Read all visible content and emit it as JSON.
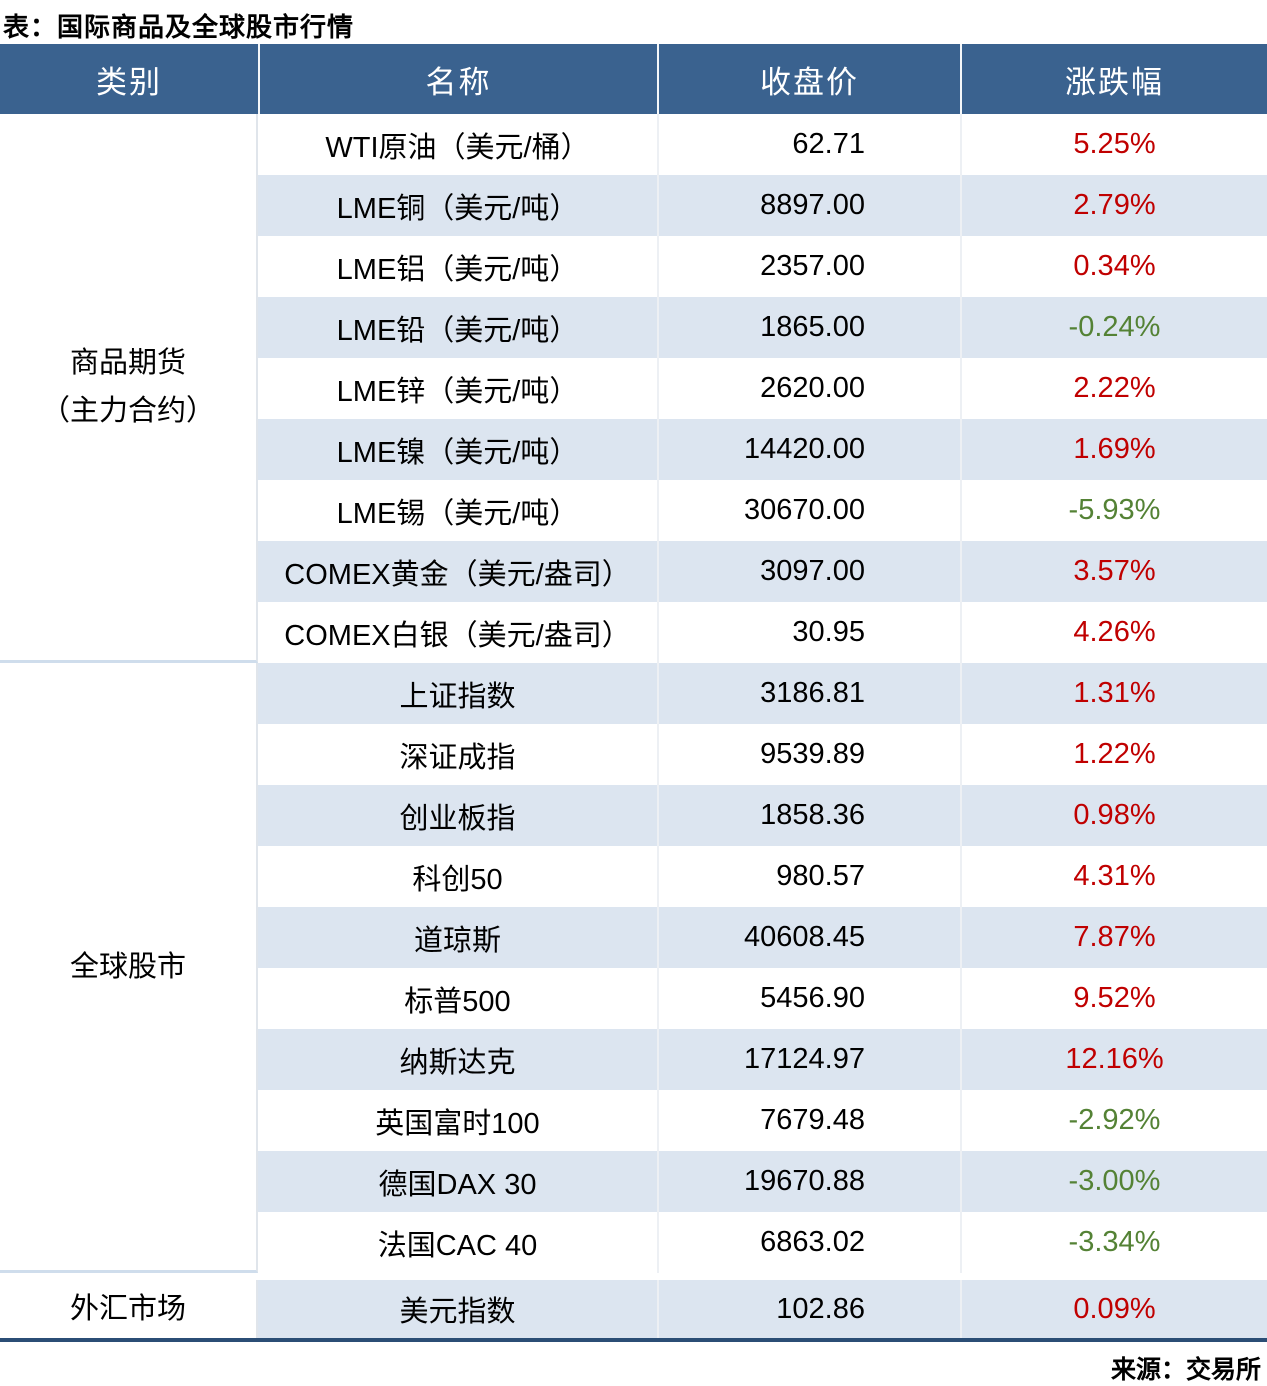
{
  "title": "表：国际商品及全球股市行情",
  "source": "来源：交易所",
  "colors": {
    "header_bg": "#3A628F",
    "row_alt": "#DCE5F0",
    "up_red": "#C00000",
    "down_green": "#548235",
    "bottom_rule": "#2B4E75"
  },
  "chart_data": {
    "type": "table",
    "title": "表：国际商品及全球股市行情",
    "columns": [
      "类别",
      "名称",
      "收盘价",
      "涨跌幅"
    ],
    "source": "来源：交易所",
    "legend_note": "red = positive change, green = negative change",
    "sections": [
      {
        "category": "商品期货（主力合约）",
        "category_lines": [
          "商品期货",
          "（主力合约）"
        ],
        "rows": [
          {
            "name": "WTI原油（美元/桶）",
            "close": "62.71",
            "change": "5.25%"
          },
          {
            "name": "LME铜（美元/吨）",
            "close": "8897.00",
            "change": "2.79%"
          },
          {
            "name": "LME铝（美元/吨）",
            "close": "2357.00",
            "change": "0.34%"
          },
          {
            "name": "LME铅（美元/吨）",
            "close": "1865.00",
            "change": "-0.24%"
          },
          {
            "name": "LME锌（美元/吨）",
            "close": "2620.00",
            "change": "2.22%"
          },
          {
            "name": "LME镍（美元/吨）",
            "close": "14420.00",
            "change": "1.69%"
          },
          {
            "name": "LME锡（美元/吨）",
            "close": "30670.00",
            "change": "-5.93%"
          },
          {
            "name": "COMEX黄金（美元/盎司）",
            "close": "3097.00",
            "change": "3.57%"
          },
          {
            "name": "COMEX白银（美元/盎司）",
            "close": "30.95",
            "change": "4.26%"
          }
        ]
      },
      {
        "category": "全球股市",
        "category_lines": [
          "全球股市"
        ],
        "rows": [
          {
            "name": "上证指数",
            "close": "3186.81",
            "change": "1.31%"
          },
          {
            "name": "深证成指",
            "close": "9539.89",
            "change": "1.22%"
          },
          {
            "name": "创业板指",
            "close": "1858.36",
            "change": "0.98%"
          },
          {
            "name": "科创50",
            "close": "980.57",
            "change": "4.31%"
          },
          {
            "name": "道琼斯",
            "close": "40608.45",
            "change": "7.87%"
          },
          {
            "name": "标普500",
            "close": "5456.90",
            "change": "9.52%"
          },
          {
            "name": "纳斯达克",
            "close": "17124.97",
            "change": "12.16%"
          },
          {
            "name": "英国富时100",
            "close": "7679.48",
            "change": "-2.92%"
          },
          {
            "name": "德国DAX 30",
            "close": "19670.88",
            "change": "-3.00%"
          },
          {
            "name": "法国CAC 40",
            "close": "6863.02",
            "change": "-3.34%"
          }
        ]
      },
      {
        "category": "外汇市场",
        "category_lines": [
          "外汇市场"
        ],
        "rows": [
          {
            "name": "美元指数",
            "close": "102.86",
            "change": "0.09%"
          }
        ]
      }
    ]
  }
}
